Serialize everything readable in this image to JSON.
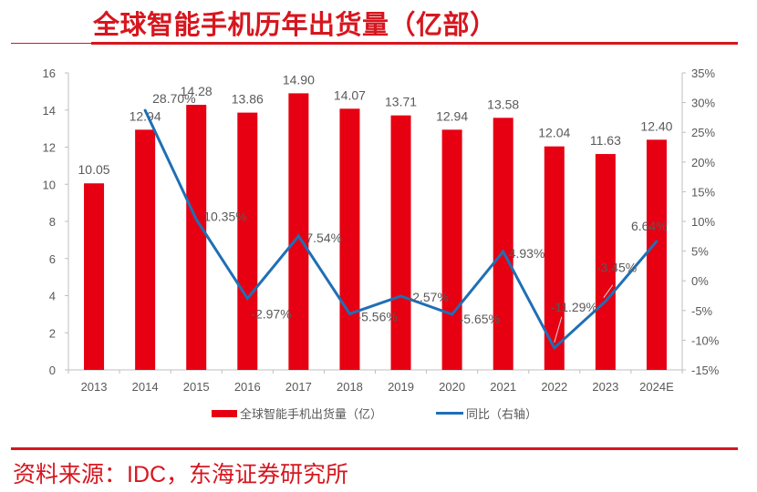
{
  "header": {
    "title": "全球智能手机历年出货量（亿部）"
  },
  "footer": {
    "source": "资料来源：IDC，东海证券研究所"
  },
  "colors": {
    "accent": "#d7161e",
    "bar": "#e60012",
    "line": "#1f6fb5",
    "text": "#595959",
    "axis": "#bfbfbf"
  },
  "chart_data": {
    "type": "bar+line",
    "title": "全球智能手机历年出货量（亿部）",
    "categories": [
      "2013",
      "2014",
      "2015",
      "2016",
      "2017",
      "2018",
      "2019",
      "2020",
      "2021",
      "2022",
      "2023",
      "2024E"
    ],
    "series": [
      {
        "name": "全球智能手机出货量（亿）",
        "type": "bar",
        "axis": "left",
        "values": [
          10.05,
          12.94,
          14.28,
          13.86,
          14.9,
          14.07,
          13.71,
          12.94,
          13.58,
          12.04,
          11.63,
          12.4
        ],
        "labels": [
          "10.05",
          "12.94",
          "14.28",
          "13.86",
          "14.90",
          "14.07",
          "13.71",
          "12.94",
          "13.58",
          "12.04",
          "11.63",
          "12.40"
        ]
      },
      {
        "name": "同比（右轴）",
        "type": "line",
        "axis": "right",
        "values": [
          null,
          28.7,
          10.35,
          -2.97,
          7.54,
          -5.56,
          -2.57,
          -5.65,
          4.93,
          -11.29,
          -3.45,
          6.64
        ],
        "labels": [
          "",
          "28.70%",
          "10.35%",
          "-2.97%",
          "7.54%",
          "-5.56%",
          "-2.57%",
          "-5.65%",
          "4.93%",
          "-11.29%",
          "-3.45%",
          "6.64%"
        ]
      }
    ],
    "y_left": {
      "min": 0,
      "max": 16,
      "step": 2,
      "ticks": [
        "0",
        "2",
        "4",
        "6",
        "8",
        "10",
        "12",
        "14",
        "16"
      ]
    },
    "y_right": {
      "min": -15,
      "max": 35,
      "step": 5,
      "ticks": [
        "-15%",
        "-10%",
        "-5%",
        "0%",
        "5%",
        "10%",
        "15%",
        "20%",
        "25%",
        "30%",
        "35%"
      ]
    },
    "legend": {
      "position": "bottom",
      "items": [
        "全球智能手机出货量（亿）",
        "同比（右轴）"
      ]
    },
    "grid": false
  }
}
